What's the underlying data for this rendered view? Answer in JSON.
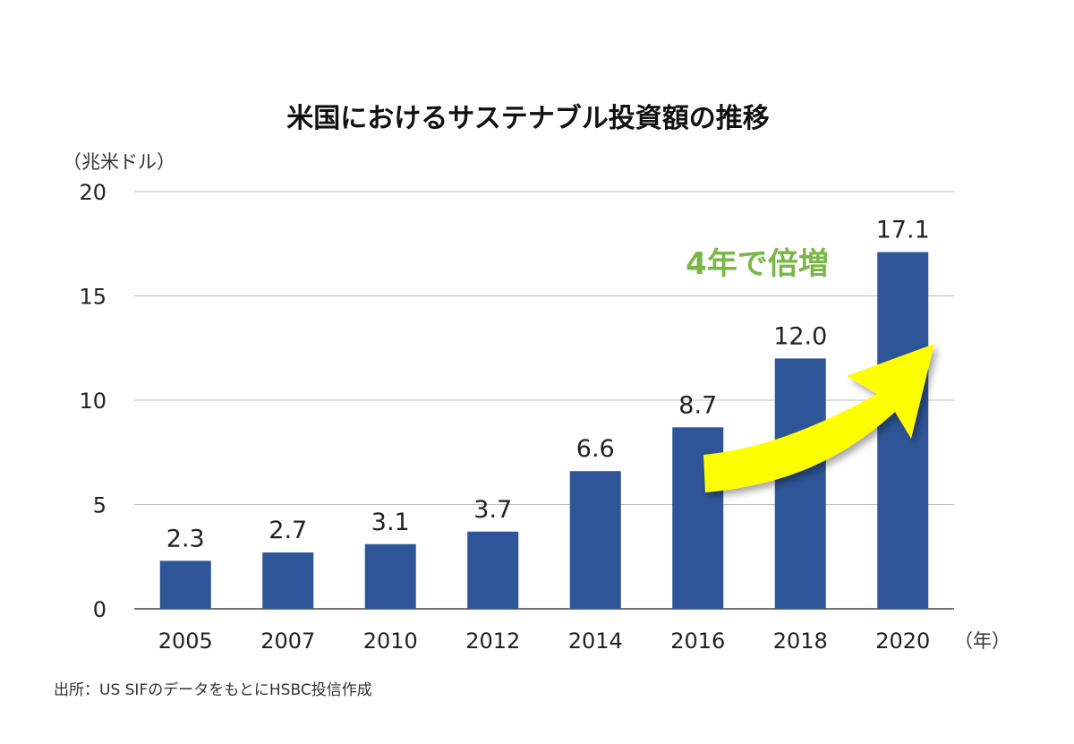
{
  "chart_data": {
    "type": "bar",
    "title": "米国におけるサステナブル投資額の推移",
    "ylabel": "（兆米ドル）",
    "xlabel": "（年）",
    "categories": [
      "2005",
      "2007",
      "2010",
      "2012",
      "2014",
      "2016",
      "2018",
      "2020"
    ],
    "values": [
      2.3,
      2.7,
      3.1,
      3.7,
      6.6,
      8.7,
      12.0,
      17.1
    ],
    "data_labels": [
      "2.3",
      "2.7",
      "3.1",
      "3.7",
      "6.6",
      "8.7",
      "12.0",
      "17.1"
    ],
    "yticks": [
      "0",
      "5",
      "10",
      "15",
      "20"
    ],
    "ytick_values": [
      0,
      5,
      10,
      15,
      20
    ],
    "ylim": [
      0,
      20
    ],
    "grid": true,
    "legend": "none",
    "bar_color": "#2e5597",
    "annotation": {
      "text": "4年で倍増",
      "color": "#7ab648",
      "arrow_color": "#ffff00",
      "arrow_from": "2016",
      "arrow_to": "2020"
    }
  },
  "source": "出所：US SIFのデータをもとにHSBC投信作成"
}
